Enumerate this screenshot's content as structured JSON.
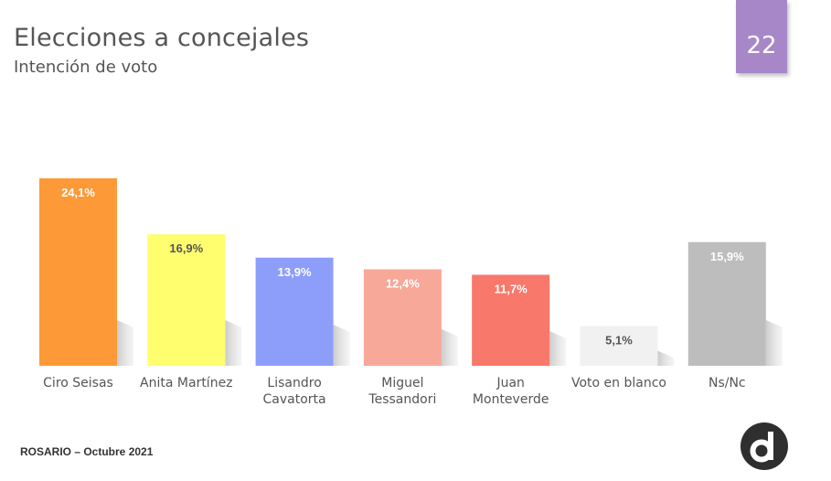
{
  "header": {
    "title": "Elecciones a concejales",
    "subtitle": "Intención de voto",
    "page_number": "22"
  },
  "footer": {
    "text": "ROSARIO – Octubre 2021"
  },
  "logo": {
    "icon": "d-logo-icon",
    "letter": "d"
  },
  "colors": {
    "text": "#555555",
    "badge": "#a887c9",
    "shadow": "#d4d4d4"
  },
  "chart_data": {
    "type": "bar",
    "categories": [
      [
        "Ciro Seisas"
      ],
      [
        "Anita Martínez"
      ],
      [
        "Lisandro",
        "Cavatorta"
      ],
      [
        "Miguel",
        "Tessandori"
      ],
      [
        "Juan",
        "Monteverde"
      ],
      [
        "Voto en blanco"
      ],
      [
        "Ns/Nc"
      ]
    ],
    "values": [
      24.1,
      16.9,
      13.9,
      12.4,
      11.7,
      5.1,
      15.9
    ],
    "labels": [
      "24,1%",
      "16,9%",
      "13,9%",
      "12,4%",
      "11,7%",
      "5,1%",
      "15,9%"
    ],
    "colors": [
      "#fd9936",
      "#fefe6e",
      "#8c9ef9",
      "#f7a898",
      "#f8786b",
      "#f1f1f1",
      "#bdbdbd"
    ],
    "label_colors": [
      "#ffffff",
      "#555555",
      "#ffffff",
      "#ffffff",
      "#ffffff",
      "#555555",
      "#ffffff"
    ],
    "title": "",
    "xlabel": "",
    "ylabel": "",
    "ylim": [
      0,
      24.1
    ],
    "grid": false,
    "legend": "none"
  }
}
